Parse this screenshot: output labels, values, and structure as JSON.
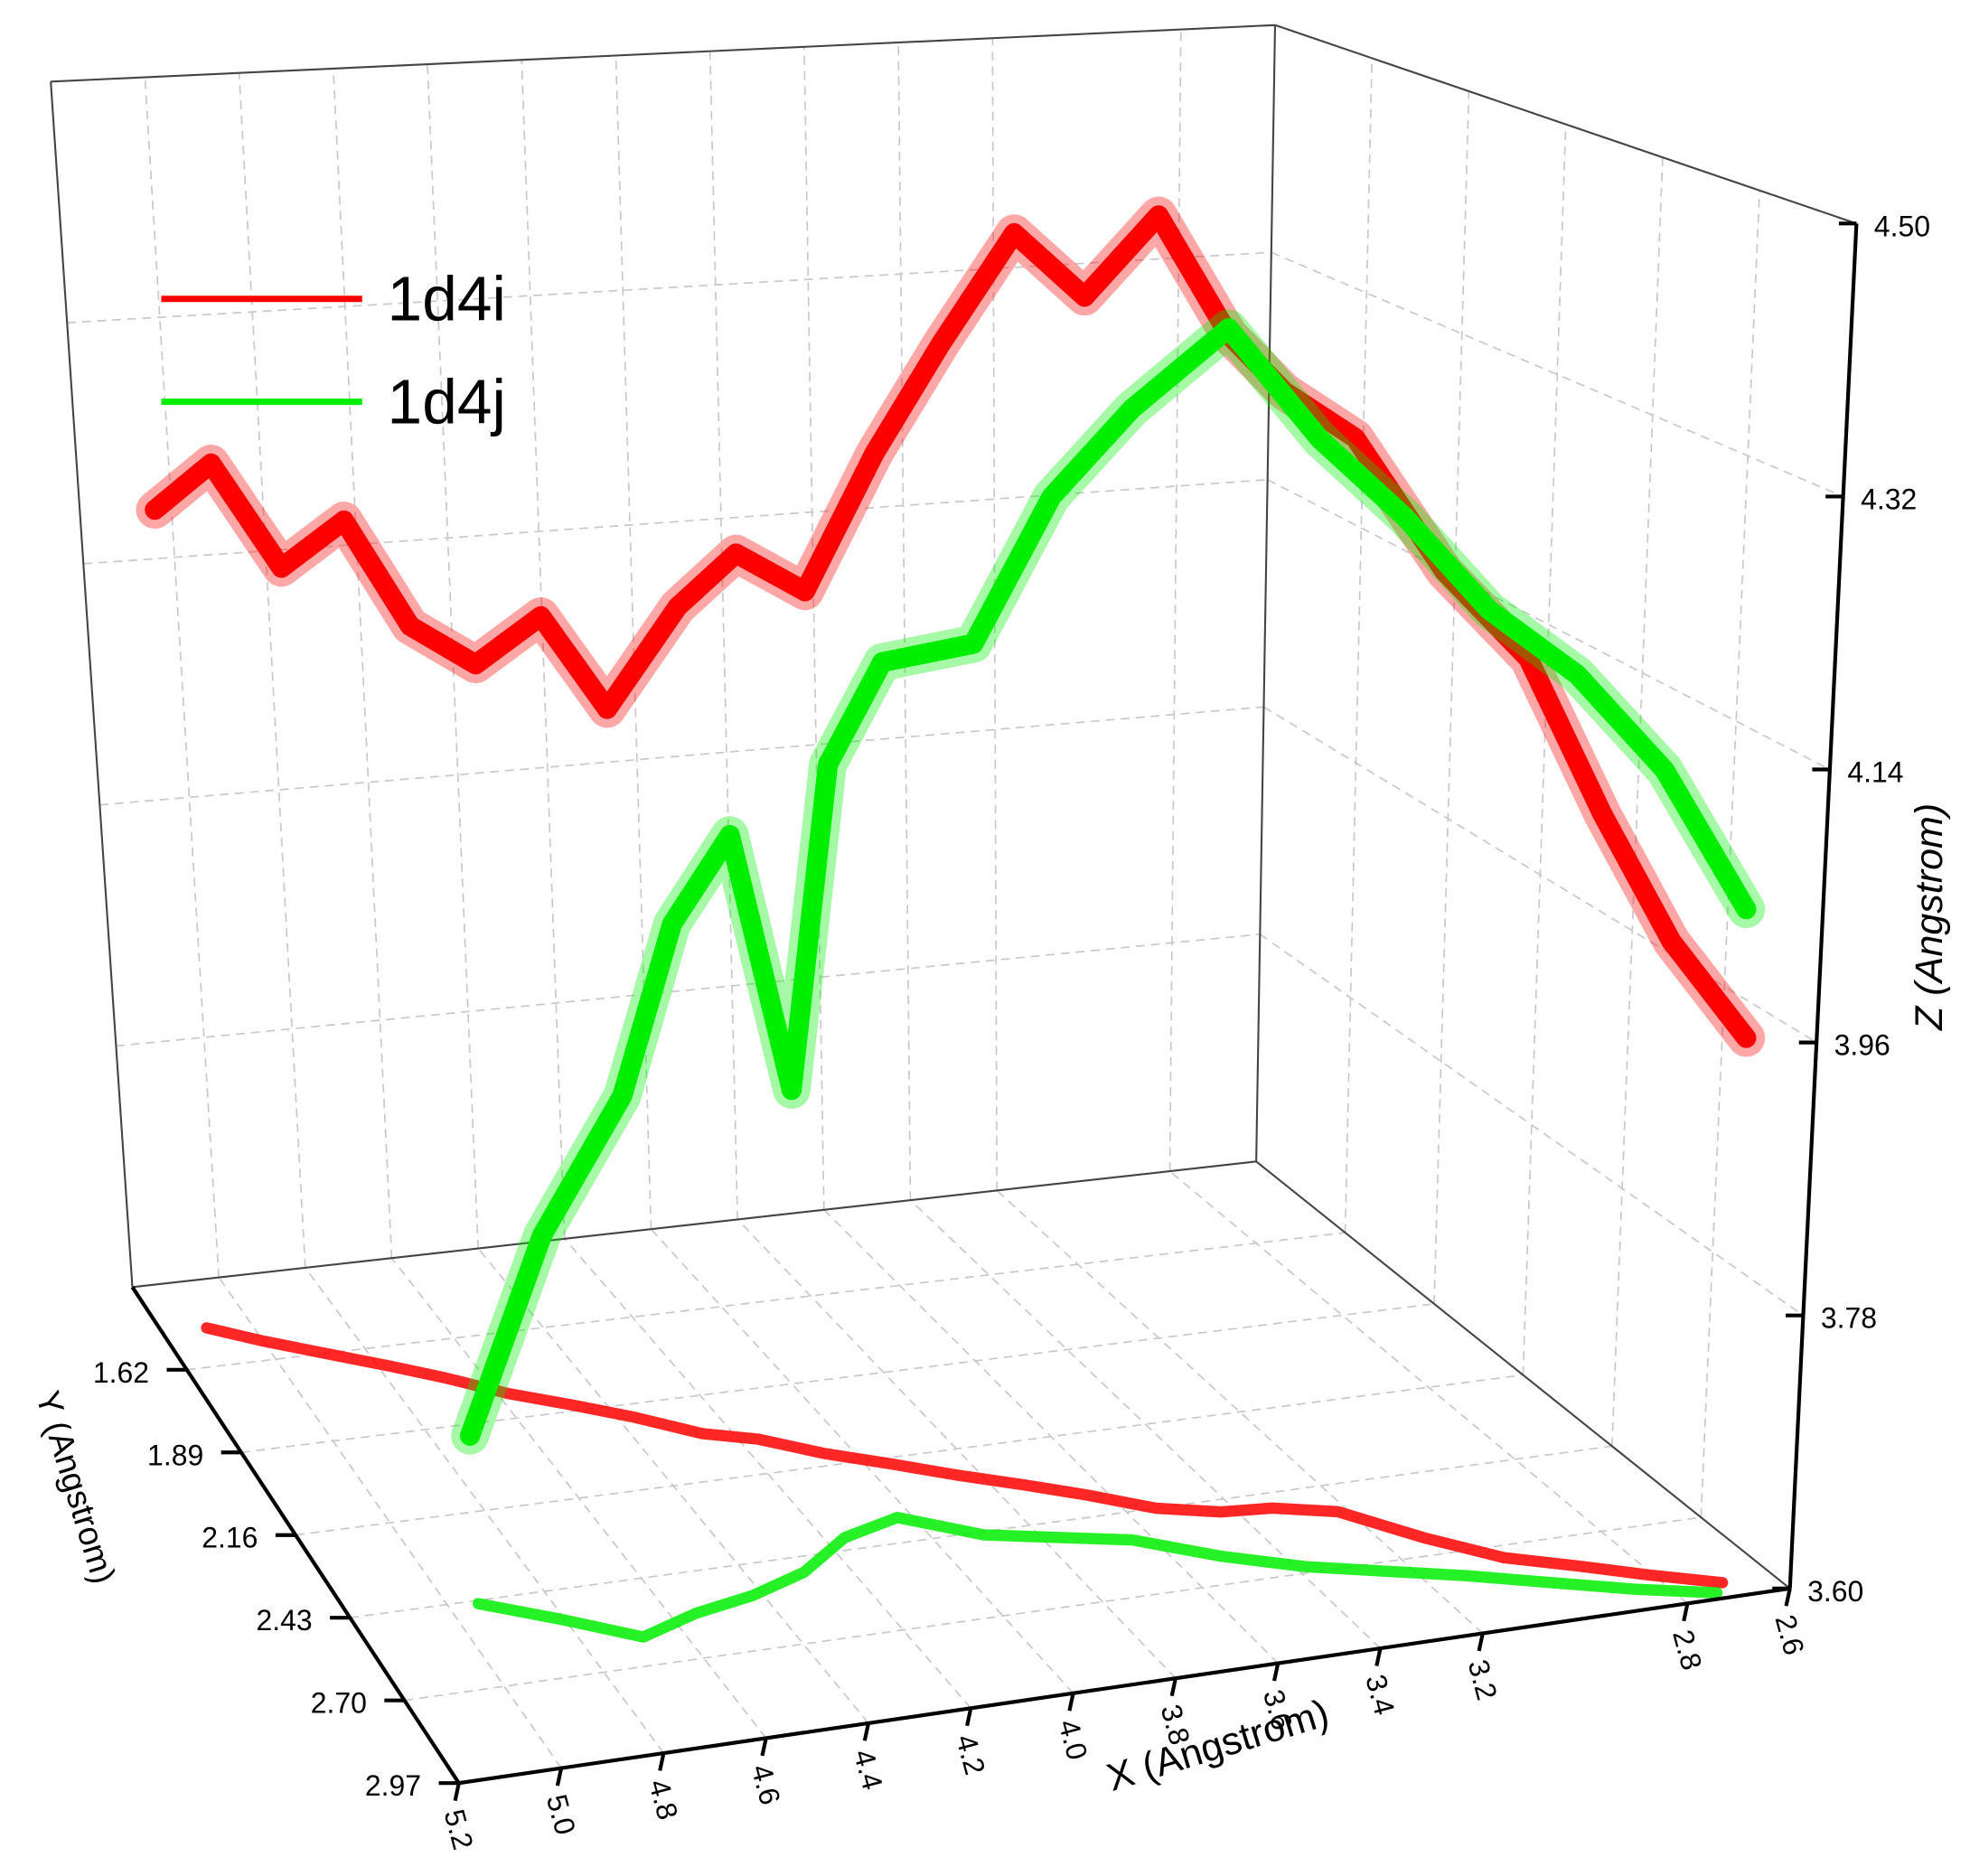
{
  "chart_data": {
    "type": "line3d",
    "xlabel": "X (Angstrom)",
    "ylabel": "Y (Angstrom)",
    "zlabel": "Z (Angstrom)",
    "xlim": [
      5.2,
      2.6
    ],
    "xticks": [
      5.2,
      {
        "value": 5,
        "label": "5.0"
      },
      4.8,
      4.6,
      4.4,
      4.2,
      {
        "value": 4,
        "label": "4.0"
      },
      3.8,
      3.6,
      3.4,
      3.2,
      2.8,
      2.6
    ],
    "ylim": [
      1.35,
      2.97
    ],
    "yticks": [
      1.62,
      1.89,
      2.16,
      2.43,
      {
        "value": 2.7,
        "label": "2.70"
      },
      2.97
    ],
    "zlim": [
      3.6,
      4.5
    ],
    "zticks": [
      {
        "value": 3.6,
        "label": "3.60"
      },
      3.78,
      3.96,
      4.14,
      4.32,
      {
        "value": 4.5,
        "label": "4.50"
      }
    ],
    "grid": true,
    "floor_projection": true,
    "legend": "upper left",
    "series": [
      {
        "name": "1d4i",
        "color": "#ff0000",
        "x": [
          5.1,
          5.0,
          4.89,
          4.78,
          4.68,
          4.58,
          4.47,
          4.37,
          4.26,
          4.16,
          4.06,
          3.95,
          3.85,
          3.74,
          3.64,
          3.54,
          3.43,
          3.33,
          3.22,
          3.12,
          3.02,
          2.91,
          2.81,
          2.7
        ],
        "y": [
          1.5,
          1.56,
          1.62,
          1.68,
          1.74,
          1.81,
          1.87,
          1.93,
          2.01,
          2.05,
          2.12,
          2.18,
          2.24,
          2.3,
          2.36,
          2.43,
          2.47,
          2.48,
          2.52,
          2.64,
          2.74,
          2.8,
          2.86,
          2.92
        ],
        "z": [
          4.2,
          4.24,
          4.17,
          4.21,
          4.14,
          4.12,
          4.16,
          4.1,
          4.18,
          4.22,
          4.2,
          4.3,
          4.38,
          4.46,
          4.42,
          4.48,
          4.4,
          4.36,
          4.33,
          4.25,
          4.2,
          4.1,
          4.02,
          3.96
        ]
      },
      {
        "name": "1d4j",
        "color": "#00ee00",
        "x": [
          4.94,
          4.81,
          4.68,
          4.55,
          4.42,
          4.29,
          4.16,
          4.03,
          3.9,
          3.77,
          3.64,
          3.51,
          3.38,
          3.25,
          3.12,
          2.99,
          2.86,
          2.73
        ],
        "y": [
          2.44,
          2.52,
          2.61,
          2.56,
          2.53,
          2.48,
          2.39,
          2.35,
          2.44,
          2.48,
          2.52,
          2.61,
          2.68,
          2.73,
          2.78,
          2.84,
          2.9,
          2.95
        ],
        "z": [
          3.71,
          3.85,
          3.95,
          4.05,
          4.1,
          3.92,
          4.12,
          4.18,
          4.2,
          4.3,
          4.36,
          4.42,
          4.35,
          4.3,
          4.24,
          4.2,
          4.14,
          4.05
        ]
      }
    ]
  }
}
